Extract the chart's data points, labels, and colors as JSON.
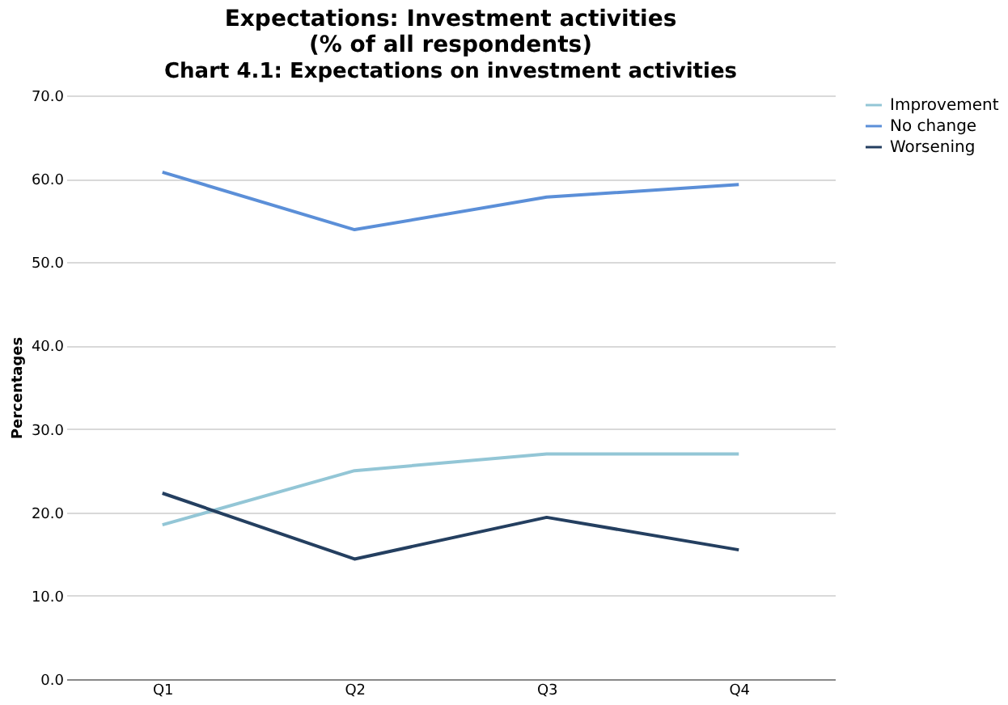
{
  "chart_data": {
    "type": "line",
    "title": [
      "Expectations: Investment activities",
      "(% of all respondents)"
    ],
    "annotations": [
      "Chart 4.1: Expectations on investment activities"
    ],
    "ylabel": "Percentages",
    "categories": [
      "Q1",
      "Q2",
      "Q3",
      "Q4"
    ],
    "series": [
      {
        "name": "Improvement",
        "color": "#93c6d6",
        "values": [
          18.5,
          25.0,
          27.0,
          27.0
        ]
      },
      {
        "name": "No change",
        "color": "#5b8fd8",
        "values": [
          60.8,
          53.9,
          57.8,
          59.3
        ]
      },
      {
        "name": "Worsening",
        "color": "#243f60",
        "values": [
          22.3,
          14.4,
          19.4,
          15.5
        ]
      }
    ],
    "ylim": [
      0,
      70
    ],
    "yticks": [
      {
        "value": 0,
        "label": "0.0"
      },
      {
        "value": 10,
        "label": "10.0"
      },
      {
        "value": 20,
        "label": "20.0"
      },
      {
        "value": 30,
        "label": "30.0"
      },
      {
        "value": 40,
        "label": "40.0"
      },
      {
        "value": 50,
        "label": "50.0"
      },
      {
        "value": 60,
        "label": "60.0"
      },
      {
        "value": 70,
        "label": "70.0"
      }
    ],
    "grid": "y",
    "legend": "right",
    "marker": "none",
    "line_style": "solid"
  }
}
